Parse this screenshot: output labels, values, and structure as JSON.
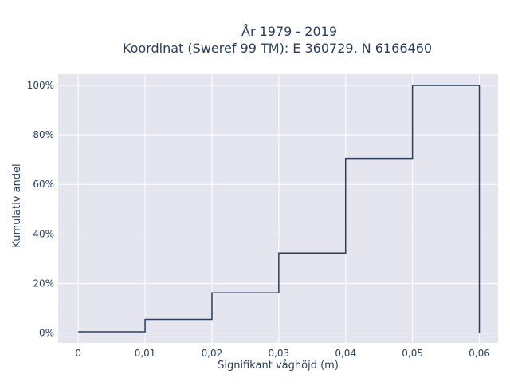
{
  "chart_data": {
    "type": "line",
    "subtype": "cumulative-step",
    "title_lines": [
      "År 1979 - 2019",
      "Koordinat (Sweref 99 TM): E 360729, N 6166460"
    ],
    "xlabel": "Signifikant våghöjd (m)",
    "ylabel": "Kumulativ andel",
    "xlim": [
      -0.003,
      0.0628
    ],
    "ylim": [
      -0.04,
      1.045
    ],
    "x_ticks": [
      0,
      0.01,
      0.02,
      0.03,
      0.04,
      0.05,
      0.06
    ],
    "x_tick_labels": [
      "0",
      "0,01",
      "0,02",
      "0,03",
      "0,04",
      "0,05",
      "0,06"
    ],
    "y_ticks": [
      0,
      0.2,
      0.4,
      0.6,
      0.8,
      1.0
    ],
    "y_tick_labels": [
      "0%",
      "20%",
      "40%",
      "60%",
      "80%",
      "100%"
    ],
    "grid": true,
    "colors": {
      "plot_bg": "#e5e5ef",
      "grid": "#ffffff",
      "line": "#2a3f5f",
      "text": "#2a3f5f"
    },
    "series": [
      {
        "bins": [
          {
            "x_start": 0.0,
            "x_end": 0.01,
            "value": 0.005
          },
          {
            "x_start": 0.01,
            "x_end": 0.02,
            "value": 0.055
          },
          {
            "x_start": 0.02,
            "x_end": 0.03,
            "value": 0.162
          },
          {
            "x_start": 0.03,
            "x_end": 0.04,
            "value": 0.323
          },
          {
            "x_start": 0.04,
            "x_end": 0.05,
            "value": 0.705
          },
          {
            "x_start": 0.05,
            "x_end": 0.06,
            "value": 1.0
          }
        ],
        "end_drop_to": 0
      }
    ]
  }
}
